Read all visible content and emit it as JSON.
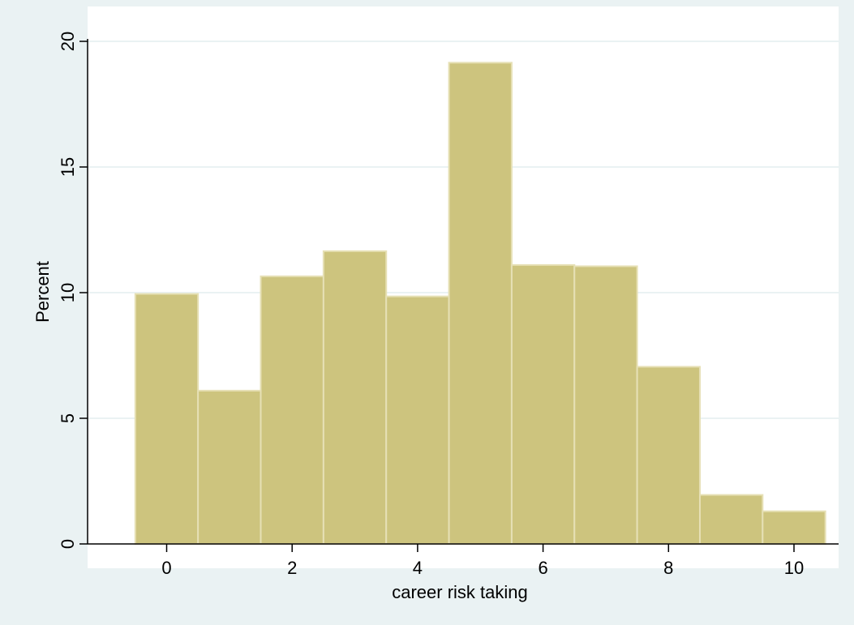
{
  "chart_data": {
    "type": "bar",
    "subtype": "histogram",
    "bins": [
      {
        "start": -0.5,
        "end": 0.5,
        "value": 9.95
      },
      {
        "start": 0.5,
        "end": 1.5,
        "value": 6.1
      },
      {
        "start": 1.5,
        "end": 2.5,
        "value": 10.65
      },
      {
        "start": 2.5,
        "end": 3.5,
        "value": 11.65
      },
      {
        "start": 3.5,
        "end": 4.5,
        "value": 9.85
      },
      {
        "start": 4.5,
        "end": 5.5,
        "value": 19.15
      },
      {
        "start": 5.5,
        "end": 6.5,
        "value": 11.1
      },
      {
        "start": 6.5,
        "end": 7.5,
        "value": 11.05
      },
      {
        "start": 7.5,
        "end": 8.5,
        "value": 7.05
      },
      {
        "start": 8.5,
        "end": 9.5,
        "value": 1.95
      },
      {
        "start": 9.5,
        "end": 10.5,
        "value": 1.3
      }
    ],
    "xlabel": "career risk taking",
    "ylabel": "Percent",
    "xlim": [
      -1.5,
      11.5
    ],
    "ylim": [
      0,
      20
    ],
    "xticks": [
      "0",
      "2",
      "4",
      "6",
      "8",
      "10"
    ],
    "yticks": [
      "0",
      "5",
      "10",
      "15",
      "20"
    ],
    "grid": true,
    "colors": {
      "outer_background": "#eaf2f3",
      "plot_background": "#ffffff",
      "bar_fill": "#cdc47e",
      "bar_stroke": "#e6e0b5",
      "gridline": "#eaf2f3",
      "axis": "#000000"
    }
  }
}
